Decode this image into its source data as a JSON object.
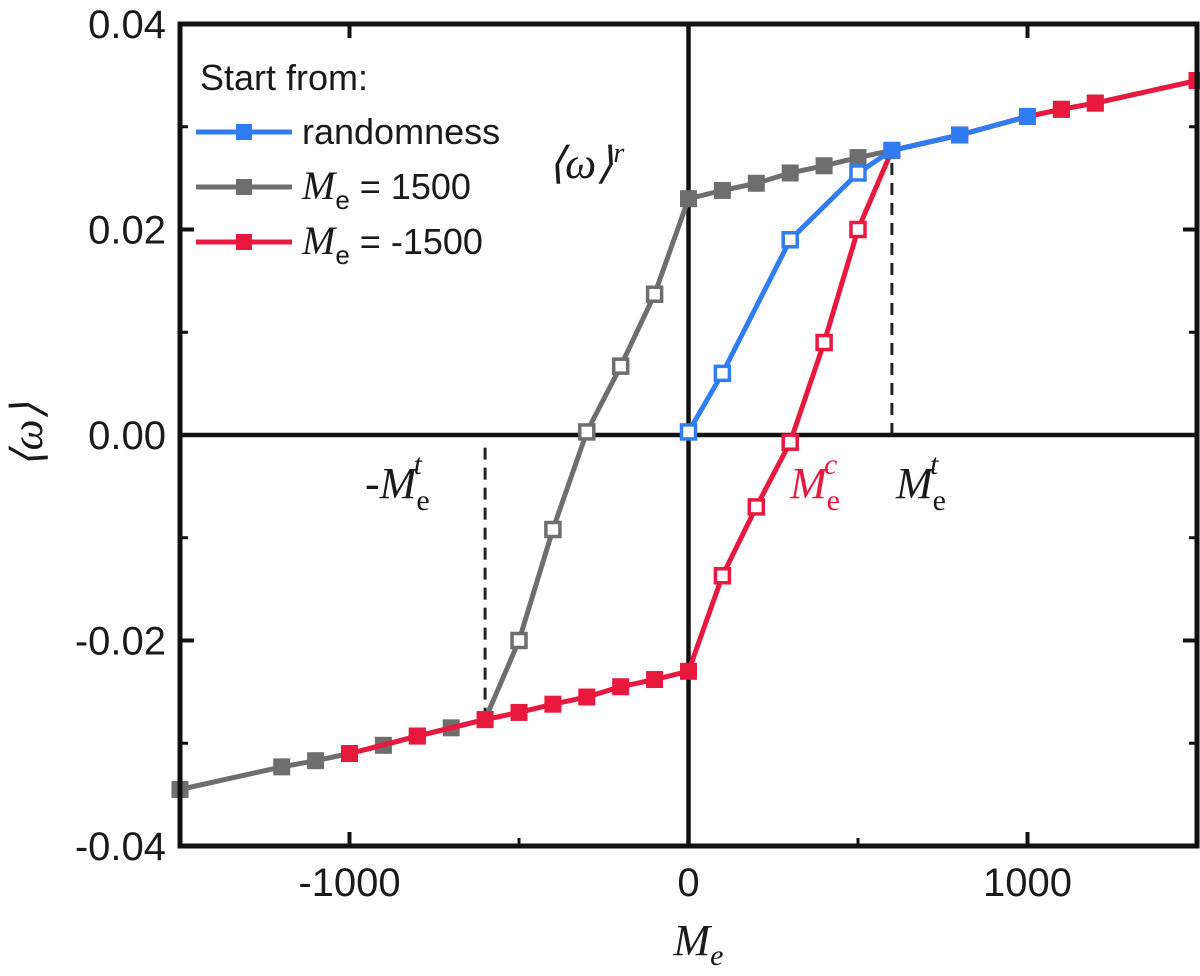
{
  "chart_data": {
    "type": "line",
    "xlabel": "M",
    "xlabel_sub": "e",
    "ylabel": "⟨ω⟩",
    "xlim": [
      -1500,
      1500
    ],
    "ylim": [
      -0.04,
      0.04
    ],
    "x_ticks": [
      -1000,
      0,
      1000
    ],
    "x_tick_labels": [
      "-1000",
      "0",
      "1000"
    ],
    "y_ticks": [
      -0.04,
      -0.02,
      0.0,
      0.02,
      0.04
    ],
    "y_tick_labels": [
      "-0.04",
      "-0.02",
      "0.00",
      "0.02",
      "0.04"
    ],
    "legend": {
      "title": "Start from:",
      "placement": "top-left",
      "entries": [
        {
          "series": "randomness",
          "label": "randomness"
        },
        {
          "series": "me_1500",
          "label_main": "M",
          "label_sub": "e",
          "label_rest": " = 1500"
        },
        {
          "series": "me_neg1500",
          "label_main": "M",
          "label_sub": "e",
          "label_rest": " = -1500"
        }
      ]
    },
    "series": [
      {
        "id": "me_1500",
        "name": "Me = 1500",
        "color": "#6e6e6e",
        "points": [
          {
            "x": 1500,
            "y": 0.0345,
            "filled": true
          },
          {
            "x": 1200,
            "y": 0.0323,
            "filled": true
          },
          {
            "x": 1100,
            "y": 0.0317,
            "filled": true
          },
          {
            "x": 1000,
            "y": 0.031,
            "filled": true
          },
          {
            "x": 800,
            "y": 0.0292,
            "filled": true
          },
          {
            "x": 600,
            "y": 0.0277,
            "filled": true
          },
          {
            "x": 500,
            "y": 0.027,
            "filled": true
          },
          {
            "x": 400,
            "y": 0.0262,
            "filled": true
          },
          {
            "x": 300,
            "y": 0.0255,
            "filled": true
          },
          {
            "x": 200,
            "y": 0.0245,
            "filled": true
          },
          {
            "x": 100,
            "y": 0.0238,
            "filled": true
          },
          {
            "x": 0,
            "y": 0.023,
            "filled": true
          },
          {
            "x": -100,
            "y": 0.0137,
            "filled": false
          },
          {
            "x": -200,
            "y": 0.0067,
            "filled": false
          },
          {
            "x": -300,
            "y": 0.0003,
            "filled": false
          },
          {
            "x": -400,
            "y": -0.0092,
            "filled": false
          },
          {
            "x": -500,
            "y": -0.02,
            "filled": false
          },
          {
            "x": -600,
            "y": -0.0277,
            "filled": true
          },
          {
            "x": -700,
            "y": -0.0285,
            "filled": true
          },
          {
            "x": -800,
            "y": -0.0293,
            "filled": true
          },
          {
            "x": -900,
            "y": -0.0302,
            "filled": true
          },
          {
            "x": -1000,
            "y": -0.031,
            "filled": true
          },
          {
            "x": -1100,
            "y": -0.0317,
            "filled": true
          },
          {
            "x": -1200,
            "y": -0.0323,
            "filled": true
          },
          {
            "x": -1500,
            "y": -0.0345,
            "filled": true
          }
        ]
      },
      {
        "id": "me_neg1500",
        "name": "Me = -1500",
        "color": "#e8183f",
        "points": [
          {
            "x": -1000,
            "y": -0.031,
            "filled": true
          },
          {
            "x": -800,
            "y": -0.0293,
            "filled": true
          },
          {
            "x": -600,
            "y": -0.0277,
            "filled": true
          },
          {
            "x": -500,
            "y": -0.027,
            "filled": true
          },
          {
            "x": -400,
            "y": -0.0262,
            "filled": true
          },
          {
            "x": -300,
            "y": -0.0255,
            "filled": true
          },
          {
            "x": -200,
            "y": -0.0245,
            "filled": true
          },
          {
            "x": -100,
            "y": -0.0238,
            "filled": true
          },
          {
            "x": 0,
            "y": -0.023,
            "filled": true
          },
          {
            "x": 100,
            "y": -0.0137,
            "filled": false
          },
          {
            "x": 200,
            "y": -0.007,
            "filled": false
          },
          {
            "x": 300,
            "y": -0.0007,
            "filled": false
          },
          {
            "x": 400,
            "y": 0.009,
            "filled": false
          },
          {
            "x": 500,
            "y": 0.02,
            "filled": false
          },
          {
            "x": 600,
            "y": 0.0277,
            "filled": true
          },
          {
            "x": 800,
            "y": 0.0292,
            "filled": true
          },
          {
            "x": 1000,
            "y": 0.031,
            "filled": true
          },
          {
            "x": 1100,
            "y": 0.0317,
            "filled": true
          },
          {
            "x": 1200,
            "y": 0.0323,
            "filled": true
          },
          {
            "x": 1500,
            "y": 0.0345,
            "filled": true
          }
        ]
      },
      {
        "id": "randomness",
        "name": "randomness",
        "color": "#2f7df0",
        "points": [
          {
            "x": 0,
            "y": 0.0003,
            "filled": false
          },
          {
            "x": 100,
            "y": 0.006,
            "filled": false
          },
          {
            "x": 300,
            "y": 0.019,
            "filled": false
          },
          {
            "x": 500,
            "y": 0.0255,
            "filled": false
          },
          {
            "x": 600,
            "y": 0.0277,
            "filled": true
          },
          {
            "x": 800,
            "y": 0.0292,
            "filled": true
          },
          {
            "x": 1000,
            "y": 0.031,
            "filled": true
          }
        ]
      }
    ],
    "reference_lines": [
      {
        "type": "vertical",
        "x": 600,
        "y_from": 0.0,
        "y_to": 0.0277,
        "style": "dashed"
      },
      {
        "type": "vertical",
        "x": -600,
        "y_from": -0.0277,
        "y_to": -0.0005,
        "style": "dashed"
      }
    ],
    "annotations": [
      {
        "id": "omega_r",
        "main": "⟨ω⟩",
        "sup": "r",
        "x": 300,
        "y": 0.0262,
        "color": "#1a1a1a"
      },
      {
        "id": "neg_me_t",
        "prefix": "-",
        "main": "M",
        "sub": "e",
        "sup": "t",
        "x": -600,
        "y": -0.004,
        "color": "#1a1a1a"
      },
      {
        "id": "me_c",
        "main": "M",
        "sub": "e",
        "sup": "c",
        "x": 380,
        "y": -0.004,
        "color": "#e8183f"
      },
      {
        "id": "me_t",
        "main": "M",
        "sub": "e",
        "sup": "t",
        "x": 780,
        "y": -0.004,
        "color": "#1a1a1a"
      }
    ]
  }
}
